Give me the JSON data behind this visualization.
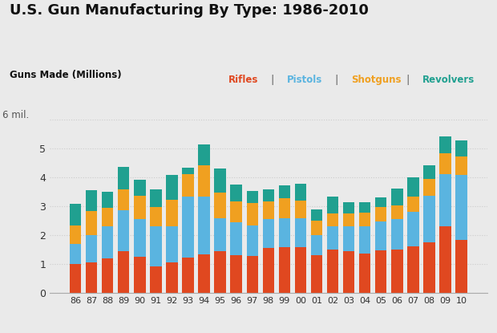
{
  "title": "U.S. Gun Manufacturing By Type: 1986-2010",
  "ylabel": "Guns Made (Millions)",
  "background_color": "#eaeaea",
  "years": [
    "86",
    "87",
    "88",
    "89",
    "90",
    "91",
    "92",
    "93",
    "94",
    "95",
    "96",
    "97",
    "98",
    "99",
    "00",
    "01",
    "02",
    "03",
    "04",
    "05",
    "06",
    "07",
    "08",
    "09",
    "10"
  ],
  "rifles": [
    1.0,
    1.05,
    1.2,
    1.45,
    1.25,
    0.92,
    1.05,
    1.22,
    1.35,
    1.45,
    1.3,
    1.28,
    1.55,
    1.6,
    1.6,
    1.32,
    1.5,
    1.45,
    1.38,
    1.48,
    1.52,
    1.62,
    1.75,
    2.3,
    1.85
  ],
  "pistols": [
    0.7,
    0.95,
    1.1,
    1.42,
    1.3,
    1.38,
    1.25,
    2.12,
    2.0,
    1.15,
    1.15,
    1.05,
    1.0,
    1.0,
    0.98,
    0.68,
    0.8,
    0.85,
    0.92,
    1.0,
    1.03,
    1.2,
    1.62,
    1.82,
    2.25
  ],
  "shotguns": [
    0.65,
    0.85,
    0.65,
    0.72,
    0.82,
    0.68,
    0.92,
    0.78,
    1.08,
    0.88,
    0.72,
    0.78,
    0.62,
    0.68,
    0.62,
    0.52,
    0.45,
    0.47,
    0.48,
    0.5,
    0.5,
    0.52,
    0.58,
    0.73,
    0.62
  ],
  "revolvers": [
    0.75,
    0.72,
    0.55,
    0.78,
    0.55,
    0.62,
    0.88,
    0.22,
    0.72,
    0.84,
    0.58,
    0.42,
    0.43,
    0.44,
    0.58,
    0.38,
    0.58,
    0.38,
    0.38,
    0.33,
    0.58,
    0.68,
    0.48,
    0.58,
    0.58
  ],
  "color_rifles": "#e04820",
  "color_pistols": "#5ab4e0",
  "color_shotguns": "#f0a020",
  "color_revolvers": "#20a090",
  "ylim": [
    0,
    6.0
  ],
  "yticks": [
    0,
    1,
    2,
    3,
    4,
    5
  ],
  "grid_color": "#cccccc",
  "bar_width": 0.72
}
